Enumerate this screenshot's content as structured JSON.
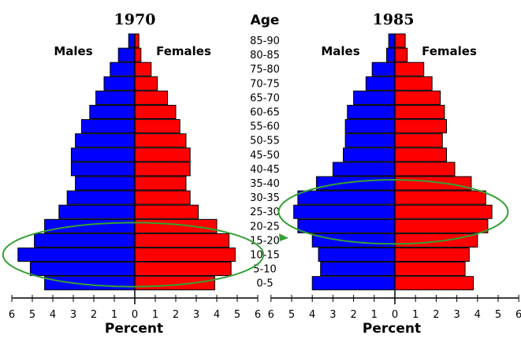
{
  "chart_data": {
    "type": "bar",
    "age_header": "Age",
    "age_groups": [
      "85-90",
      "80-85",
      "75-80",
      "70-75",
      "65-70",
      "60-65",
      "55-60",
      "50-55",
      "45-50",
      "40-45",
      "35-40",
      "30-35",
      "25-30",
      "20-25",
      "15-20",
      "10-15",
      "5-10",
      "0-5"
    ],
    "xlabel": "Percent",
    "xlim": [
      -6,
      6
    ],
    "tick_labels": [
      "6",
      "5",
      "4",
      "3",
      "2",
      "1",
      "0",
      "1",
      "2",
      "3",
      "4",
      "5",
      "6"
    ],
    "colors": {
      "males": "#0000ff",
      "females": "#ff0000",
      "highlight": "#33a133",
      "arrow": "#33a133"
    },
    "panels": [
      {
        "title": "1970",
        "male_label": "Males",
        "female_label": "Females",
        "males": [
          0.3,
          0.8,
          1.2,
          1.5,
          1.9,
          2.2,
          2.6,
          2.9,
          3.1,
          3.1,
          2.9,
          3.3,
          3.7,
          4.4,
          4.9,
          5.7,
          5.1,
          4.4
        ],
        "females": [
          0.2,
          0.3,
          0.8,
          1.1,
          1.6,
          2.0,
          2.2,
          2.5,
          2.7,
          2.7,
          2.5,
          2.7,
          3.1,
          4.0,
          4.6,
          4.9,
          4.7,
          3.9
        ],
        "highlight_groups": [
          "15-20",
          "10-15",
          "5-10"
        ]
      },
      {
        "title": "1985",
        "male_label": "Males",
        "female_label": "Females",
        "males": [
          0.3,
          0.4,
          1.1,
          1.4,
          2.0,
          2.3,
          2.4,
          2.4,
          2.5,
          3.0,
          3.8,
          4.7,
          4.9,
          4.7,
          4.0,
          3.7,
          3.6,
          4.0
        ],
        "females": [
          0.5,
          0.6,
          1.4,
          1.8,
          2.2,
          2.4,
          2.5,
          2.3,
          2.5,
          2.9,
          3.7,
          4.4,
          4.7,
          4.5,
          4.0,
          3.6,
          3.4,
          3.8
        ],
        "highlight_groups": [
          "30-35",
          "25-30",
          "20-25"
        ]
      }
    ]
  }
}
